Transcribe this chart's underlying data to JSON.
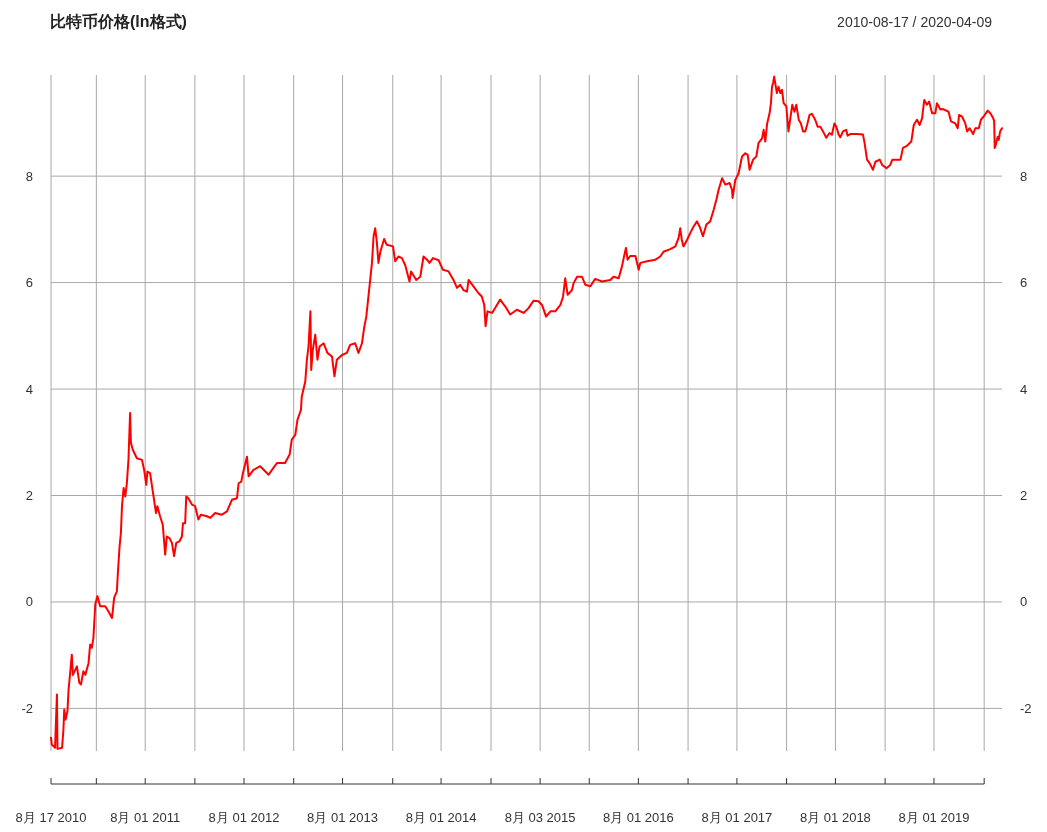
{
  "chart_data": {
    "type": "line",
    "title": "比特币价格(ln格式)",
    "subtitle": "2010-08-17 / 2020-04-09",
    "x": [
      "2010-08-17",
      "2010-08-20",
      "2010-09-01",
      "2010-09-08",
      "2010-09-10",
      "2010-09-27",
      "2010-10-02",
      "2010-10-05",
      "2010-10-10",
      "2010-10-17",
      "2010-10-21",
      "2010-10-27",
      "2010-11-02",
      "2010-11-06",
      "2010-11-21",
      "2010-11-30",
      "2010-12-06",
      "2010-12-15",
      "2010-12-22",
      "2011-01-03",
      "2011-01-09",
      "2011-01-15",
      "2011-01-21",
      "2011-01-28",
      "2011-02-05",
      "2011-02-15",
      "2011-03-06",
      "2011-03-18",
      "2011-03-31",
      "2011-04-08",
      "2011-04-18",
      "2011-04-22",
      "2011-04-28",
      "2011-05-03",
      "2011-05-07",
      "2011-05-13",
      "2011-05-19",
      "2011-05-25",
      "2011-05-31",
      "2011-06-06",
      "2011-06-09",
      "2011-06-16",
      "2011-07-01",
      "2011-07-20",
      "2011-07-28",
      "2011-08-05",
      "2011-08-09",
      "2011-08-19",
      "2011-08-31",
      "2011-09-10",
      "2011-09-15",
      "2011-09-25",
      "2011-10-05",
      "2011-10-14",
      "2011-10-20",
      "2011-10-30",
      "2011-11-08",
      "2011-11-16",
      "2011-11-24",
      "2011-12-06",
      "2011-12-15",
      "2011-12-19",
      "2011-12-27",
      "2011-12-31",
      "2012-01-08",
      "2012-01-21",
      "2012-02-02",
      "2012-02-14",
      "2012-02-23",
      "2012-03-17",
      "2012-03-29",
      "2012-04-16",
      "2012-05-11",
      "2012-05-30",
      "2012-06-17",
      "2012-07-06",
      "2012-07-12",
      "2012-07-22",
      "2012-07-28",
      "2012-08-12",
      "2012-08-18",
      "2012-09-05",
      "2012-09-30",
      "2012-10-31",
      "2012-11-18",
      "2012-12-01",
      "2012-12-31",
      "2013-01-17",
      "2013-01-25",
      "2013-02-07",
      "2013-02-15",
      "2013-02-28",
      "2013-03-03",
      "2013-03-16",
      "2013-03-22",
      "2013-03-28",
      "2013-04-04",
      "2013-04-07",
      "2013-04-13",
      "2013-04-22",
      "2013-04-30",
      "2013-05-08",
      "2013-05-23",
      "2013-06-06",
      "2013-06-23",
      "2013-07-02",
      "2013-07-11",
      "2013-07-30",
      "2013-08-17",
      "2013-08-29",
      "2013-09-17",
      "2013-09-29",
      "2013-10-12",
      "2013-10-20",
      "2013-10-28",
      "2013-11-05",
      "2013-11-12",
      "2013-11-18",
      "2013-11-24",
      "2013-11-30",
      "2013-12-06",
      "2013-12-12",
      "2013-12-19",
      "2014-01-02",
      "2014-01-12",
      "2014-02-04",
      "2014-02-12",
      "2014-02-24",
      "2014-03-09",
      "2014-03-21",
      "2014-04-06",
      "2014-04-12",
      "2014-05-01",
      "2014-05-16",
      "2014-05-28",
      "2014-06-10",
      "2014-06-19",
      "2014-07-02",
      "2014-07-23",
      "2014-08-08",
      "2014-08-29",
      "2014-09-16",
      "2014-09-29",
      "2014-10-11",
      "2014-10-23",
      "2014-11-05",
      "2014-11-11",
      "2014-11-29",
      "2014-12-18",
      "2014-12-30",
      "2015-01-08",
      "2015-01-13",
      "2015-01-20",
      "2015-02-06",
      "2015-02-24",
      "2015-03-08",
      "2015-03-27",
      "2015-04-14",
      "2015-05-09",
      "2015-06-03",
      "2015-06-21",
      "2015-07-10",
      "2015-07-28",
      "2015-08-10",
      "2015-08-25",
      "2015-09-10",
      "2015-09-28",
      "2015-10-17",
      "2015-10-27",
      "2015-11-04",
      "2015-11-13",
      "2015-11-29",
      "2015-12-05",
      "2015-12-18",
      "2016-01-05",
      "2016-01-17",
      "2016-02-05",
      "2016-02-23",
      "2016-03-19",
      "2016-04-19",
      "2016-05-01",
      "2016-05-20",
      "2016-06-01",
      "2016-06-10",
      "2016-06-16",
      "2016-06-22",
      "2016-07-02",
      "2016-07-21",
      "2016-08-02",
      "2016-08-08",
      "2016-09-02",
      "2016-10-03",
      "2016-10-21",
      "2016-11-02",
      "2016-11-27",
      "2016-12-16",
      "2016-12-28",
      "2017-01-03",
      "2017-01-09",
      "2017-01-15",
      "2017-01-28",
      "2017-02-09",
      "2017-02-21",
      "2017-03-06",
      "2017-03-16",
      "2017-03-28",
      "2017-04-10",
      "2017-04-24",
      "2017-05-07",
      "2017-05-17",
      "2017-05-25",
      "2017-06-07",
      "2017-06-19",
      "2017-07-05",
      "2017-07-14",
      "2017-07-16",
      "2017-07-26",
      "2017-08-07",
      "2017-08-20",
      "2017-09-01",
      "2017-09-10",
      "2017-09-17",
      "2017-09-30",
      "2017-10-12",
      "2017-10-20",
      "2017-11-02",
      "2017-11-08",
      "2017-11-14",
      "2017-11-21",
      "2017-11-30",
      "2017-12-05",
      "2017-12-09",
      "2017-12-13",
      "2017-12-17",
      "2017-12-27",
      "2018-01-02",
      "2018-01-09",
      "2018-01-15",
      "2018-01-21",
      "2018-01-31",
      "2018-02-08",
      "2018-02-15",
      "2018-02-22",
      "2018-03-02",
      "2018-03-09",
      "2018-03-18",
      "2018-03-26",
      "2018-04-03",
      "2018-04-11",
      "2018-04-18",
      "2018-04-27",
      "2018-05-06",
      "2018-05-18",
      "2018-05-27",
      "2018-06-06",
      "2018-06-16",
      "2018-06-28",
      "2018-07-10",
      "2018-07-19",
      "2018-07-28",
      "2018-08-04",
      "2018-08-13",
      "2018-08-19",
      "2018-08-29",
      "2018-09-10",
      "2018-09-15",
      "2018-09-25",
      "2018-10-20",
      "2018-11-11",
      "2018-11-17",
      "2018-11-26",
      "2018-12-06",
      "2018-12-18",
      "2018-12-27",
      "2019-01-12",
      "2019-01-21",
      "2019-02-06",
      "2019-02-20",
      "2019-02-28",
      "2019-03-30",
      "2019-04-08",
      "2019-04-23",
      "2019-05-09",
      "2019-05-18",
      "2019-05-30",
      "2019-06-09",
      "2019-06-18",
      "2019-06-26",
      "2019-07-06",
      "2019-07-14",
      "2019-07-25",
      "2019-08-06",
      "2019-08-12",
      "2019-08-25",
      "2019-09-04",
      "2019-09-24",
      "2019-10-03",
      "2019-10-19",
      "2019-10-28",
      "2019-11-02",
      "2019-11-13",
      "2019-11-25",
      "2019-12-02",
      "2019-12-11",
      "2019-12-24",
      "2020-01-01",
      "2020-01-14",
      "2020-01-22",
      "2020-02-01",
      "2020-02-16",
      "2020-02-26",
      "2020-03-07",
      "2020-03-11",
      "2020-03-13",
      "2020-03-17",
      "2020-03-24",
      "2020-03-28",
      "2020-04-02",
      "2020-04-09"
    ],
    "series": [
      {
        "color": "#ff0000",
        "values": [
          -2.55,
          -2.68,
          -2.74,
          -1.74,
          -2.76,
          -2.74,
          -2.4,
          -2.02,
          -2.21,
          -2.05,
          -1.65,
          -1.33,
          -0.99,
          -1.37,
          -1.21,
          -1.52,
          -1.55,
          -1.3,
          -1.37,
          -1.15,
          -0.8,
          -0.86,
          -0.68,
          -0.05,
          0.11,
          -0.08,
          -0.08,
          -0.18,
          -0.3,
          0.08,
          0.2,
          0.57,
          1.04,
          1.3,
          1.8,
          2.14,
          1.98,
          2.23,
          2.67,
          3.55,
          2.99,
          2.86,
          2.7,
          2.67,
          2.48,
          2.2,
          2.45,
          2.42,
          2.01,
          1.67,
          1.8,
          1.61,
          1.45,
          0.89,
          1.23,
          1.2,
          1.11,
          0.86,
          1.11,
          1.14,
          1.23,
          1.48,
          1.48,
          1.98,
          1.95,
          1.83,
          1.8,
          1.55,
          1.64,
          1.61,
          1.58,
          1.67,
          1.64,
          1.7,
          1.92,
          1.95,
          2.23,
          2.26,
          2.42,
          2.73,
          2.36,
          2.48,
          2.55,
          2.39,
          2.52,
          2.61,
          2.61,
          2.77,
          3.05,
          3.14,
          3.42,
          3.61,
          3.86,
          4.14,
          4.55,
          4.8,
          5.46,
          4.36,
          4.74,
          5.02,
          4.55,
          4.8,
          4.86,
          4.68,
          4.61,
          4.24,
          4.55,
          4.64,
          4.68,
          4.83,
          4.86,
          4.68,
          4.86,
          5.15,
          5.36,
          5.74,
          6.08,
          6.37,
          6.87,
          7.02,
          6.77,
          6.37,
          6.58,
          6.82,
          6.71,
          6.68,
          6.4,
          6.49,
          6.46,
          6.33,
          6.02,
          6.21,
          6.05,
          6.11,
          6.49,
          6.43,
          6.37,
          6.46,
          6.42,
          6.24,
          6.21,
          6.05,
          5.9,
          5.96,
          5.86,
          5.83,
          6.05,
          5.93,
          5.8,
          5.74,
          5.58,
          5.18,
          5.46,
          5.43,
          5.58,
          5.68,
          5.55,
          5.4,
          5.49,
          5.43,
          5.52,
          5.66,
          5.65,
          5.58,
          5.36,
          5.46,
          5.46,
          5.58,
          5.74,
          6.08,
          5.77,
          5.86,
          5.99,
          6.11,
          6.11,
          5.96,
          5.93,
          6.07,
          6.02,
          6.05,
          6.11,
          6.08,
          6.3,
          6.52,
          6.65,
          6.43,
          6.5,
          6.5,
          6.24,
          6.37,
          6.4,
          6.43,
          6.49,
          6.58,
          6.63,
          6.68,
          6.84,
          7.02,
          6.8,
          6.68,
          6.8,
          6.93,
          7.05,
          7.15,
          7.05,
          6.87,
          7.09,
          7.15,
          7.37,
          7.56,
          7.74,
          7.96,
          7.84,
          7.87,
          7.74,
          7.59,
          7.93,
          8.05,
          8.37,
          8.43,
          8.4,
          8.12,
          8.31,
          8.37,
          8.62,
          8.71,
          8.87,
          8.65,
          8.99,
          9.18,
          9.37,
          9.68,
          9.75,
          9.87,
          9.56,
          9.68,
          9.56,
          9.62,
          9.37,
          9.31,
          8.84,
          9.09,
          9.34,
          9.21,
          9.34,
          9.06,
          8.99,
          8.84,
          8.84,
          8.96,
          9.15,
          9.17,
          9.06,
          8.93,
          8.93,
          8.84,
          8.72,
          8.81,
          8.78,
          8.99,
          8.93,
          8.78,
          8.73,
          8.84,
          8.87,
          8.76,
          8.79,
          8.79,
          8.78,
          8.62,
          8.31,
          8.24,
          8.12,
          8.27,
          8.31,
          8.21,
          8.15,
          8.21,
          8.31,
          8.31,
          8.53,
          8.57,
          8.65,
          8.96,
          9.06,
          8.96,
          9.09,
          9.43,
          9.34,
          9.4,
          9.18,
          9.18,
          9.37,
          9.25,
          9.26,
          9.21,
          9.03,
          8.99,
          8.9,
          9.15,
          9.12,
          8.99,
          8.84,
          8.9,
          8.79,
          8.9,
          8.9,
          9.06,
          9.12,
          9.23,
          9.18,
          9.09,
          9.04,
          8.53,
          8.59,
          8.74,
          8.68,
          8.84,
          8.9
        ]
      }
    ],
    "xlim": [
      "2010-08-17",
      "2020-04-09"
    ],
    "xticks": [
      {
        "value": "2010-08-17",
        "label": "8月 17 2010"
      },
      {
        "value": "2011-02-01",
        "label": null
      },
      {
        "value": "2011-08-01",
        "label": "8月 01 2011"
      },
      {
        "value": "2012-02-01",
        "label": null
      },
      {
        "value": "2012-08-01",
        "label": "8月 01 2012"
      },
      {
        "value": "2013-02-01",
        "label": null
      },
      {
        "value": "2013-08-01",
        "label": "8月 01 2013"
      },
      {
        "value": "2014-02-03",
        "label": null
      },
      {
        "value": "2014-08-01",
        "label": "8月 01 2014"
      },
      {
        "value": "2015-02-02",
        "label": null
      },
      {
        "value": "2015-08-03",
        "label": "8月 03 2015"
      },
      {
        "value": "2016-02-01",
        "label": null
      },
      {
        "value": "2016-08-01",
        "label": "8月 01 2016"
      },
      {
        "value": "2017-02-01",
        "label": null
      },
      {
        "value": "2017-08-01",
        "label": "8月 01 2017"
      },
      {
        "value": "2018-02-01",
        "label": null
      },
      {
        "value": "2018-08-01",
        "label": "8月 01 2018"
      },
      {
        "value": "2019-02-01",
        "label": null
      },
      {
        "value": "2019-08-01",
        "label": "8月 01 2019"
      },
      {
        "value": "2020-02-03",
        "label": null
      }
    ],
    "ylim": [
      -2.8,
      9.9
    ],
    "yticks": [
      -2,
      0,
      2,
      4,
      6,
      8
    ],
    "y2lim": [
      -2.8,
      9.9
    ],
    "y2ticks": [
      -2,
      0,
      2,
      4,
      6,
      8
    ],
    "grid": true
  }
}
